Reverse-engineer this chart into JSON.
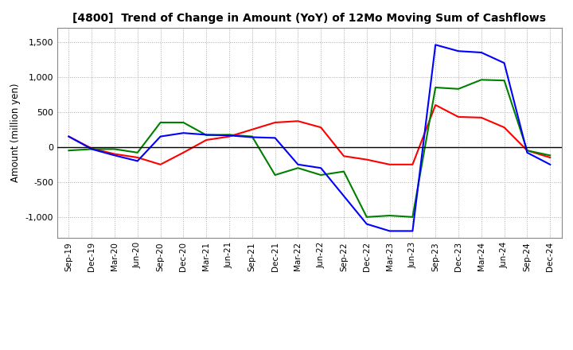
{
  "title": "[4800]  Trend of Change in Amount (YoY) of 12Mo Moving Sum of Cashflows",
  "ylabel": "Amount (million yen)",
  "ylim": [
    -1300,
    1700
  ],
  "yticks": [
    -1000,
    -500,
    0,
    500,
    1000,
    1500
  ],
  "x_labels": [
    "Sep-19",
    "Dec-19",
    "Mar-20",
    "Jun-20",
    "Sep-20",
    "Dec-20",
    "Mar-21",
    "Jun-21",
    "Sep-21",
    "Dec-21",
    "Mar-22",
    "Jun-22",
    "Sep-22",
    "Dec-22",
    "Mar-23",
    "Jun-23",
    "Sep-23",
    "Dec-23",
    "Mar-24",
    "Jun-24",
    "Sep-24",
    "Dec-24"
  ],
  "operating": [
    150,
    -20,
    -100,
    -150,
    -250,
    -80,
    100,
    150,
    250,
    350,
    370,
    280,
    -130,
    -180,
    -250,
    -250,
    600,
    430,
    420,
    280,
    -50,
    -150
  ],
  "investing": [
    -50,
    -30,
    -30,
    -80,
    350,
    350,
    170,
    175,
    150,
    -400,
    -300,
    -400,
    -350,
    -1000,
    -980,
    -1000,
    850,
    830,
    960,
    950,
    -50,
    -120
  ],
  "free": [
    150,
    -30,
    -120,
    -200,
    150,
    200,
    175,
    165,
    140,
    130,
    -250,
    -300,
    -700,
    -1100,
    -1200,
    -1200,
    1460,
    1370,
    1350,
    1200,
    -80,
    -250
  ],
  "colors": {
    "operating": "#ff0000",
    "investing": "#008000",
    "free": "#0000ff"
  },
  "background_color": "#ffffff",
  "grid_color": "#aaaaaa"
}
